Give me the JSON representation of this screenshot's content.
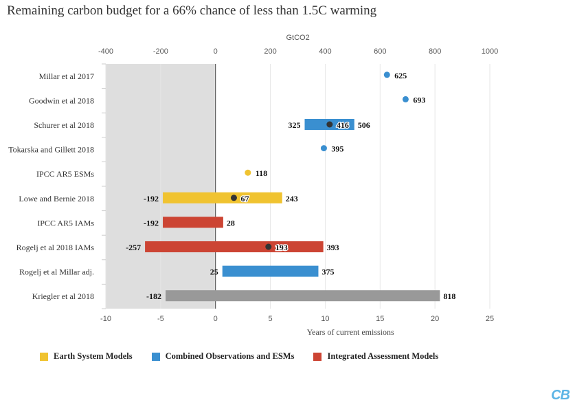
{
  "title": "Remaining carbon budget for a 66% chance of less than 1.5C warming",
  "logo_text": "CB",
  "colors": {
    "earth": "#f0c330",
    "combined": "#3a8fd0",
    "iam": "#cc4433",
    "gray": "#999999",
    "dot": "#333333",
    "shade": "#dedede",
    "grid": "#e6e6e6"
  },
  "legend": [
    {
      "label": "Earth System Models",
      "color_key": "earth"
    },
    {
      "label": "Combined Observations and ESMs",
      "color_key": "combined"
    },
    {
      "label": "Integrated Assessment Models",
      "color_key": "iam"
    }
  ],
  "chart_data": {
    "type": "range-bar",
    "top_axis": {
      "label": "GtCO2",
      "range": [
        -400,
        1000
      ],
      "ticks": [
        -400,
        -200,
        0,
        200,
        400,
        600,
        800,
        1000
      ]
    },
    "bottom_axis": {
      "label": "Years of current emissions",
      "ticks": [
        -10,
        -5,
        0,
        5,
        10,
        15,
        20,
        25
      ]
    },
    "shaded_negative_region": true,
    "rows": [
      {
        "name": "Millar et al 2017",
        "point": 625,
        "color_key": "combined"
      },
      {
        "name": "Goodwin et al 2018",
        "point": 693,
        "color_key": "combined"
      },
      {
        "name": "Schurer et al 2018",
        "low": 325,
        "high": 506,
        "mid": 416,
        "color_key": "combined"
      },
      {
        "name": "Tokarska and Gillett 2018",
        "point": 395,
        "color_key": "combined"
      },
      {
        "name": "IPCC AR5 ESMs",
        "point": 118,
        "color_key": "earth"
      },
      {
        "name": "Lowe and Bernie 2018",
        "low": -192,
        "high": 243,
        "mid": 67,
        "color_key": "earth"
      },
      {
        "name": "IPCC AR5 IAMs",
        "low": -192,
        "high": 28,
        "color_key": "iam"
      },
      {
        "name": "Rogelj et al 2018 IAMs",
        "low": -257,
        "high": 393,
        "mid": 193,
        "color_key": "iam"
      },
      {
        "name": "Rogelj et al Millar adj.",
        "low": 25,
        "high": 375,
        "color_key": "combined"
      },
      {
        "name": "Kriegler et al 2018",
        "low": -182,
        "high": 818,
        "color_key": "gray"
      }
    ]
  }
}
